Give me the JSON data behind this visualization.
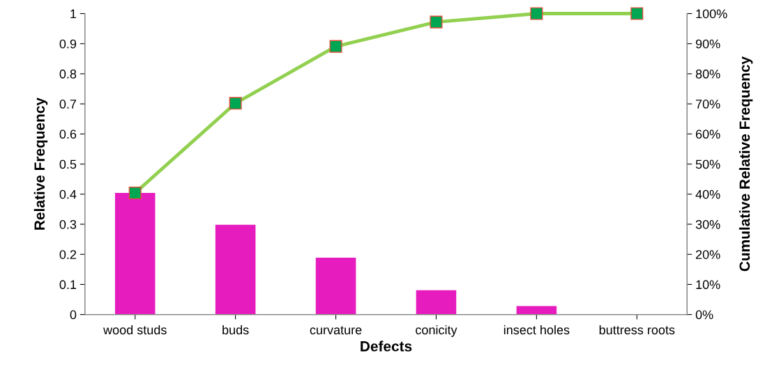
{
  "chart_data": {
    "type": "bar",
    "xlabel": "Defects",
    "ylabel": "Relative Frequency",
    "y2label": "Cumulative Relative Frequency",
    "categories": [
      "wood studs",
      "buds",
      "curvature",
      "conicity",
      "insect holes",
      "buttress roots"
    ],
    "series": [
      {
        "color": "#e61cbe",
        "values": [
          0.404,
          0.298,
          0.189,
          0.081,
          0.028,
          0
        ]
      },
      {
        "type": "line",
        "axis": "y2",
        "color": "#92d050",
        "marker": "square",
        "values": [
          40.4,
          70.2,
          89.1,
          97.2,
          100,
          100
        ]
      }
    ],
    "ylim": [
      0,
      1
    ],
    "yticks": [
      0,
      0.1,
      0.2,
      0.3,
      0.4,
      0.5,
      0.6,
      0.7,
      0.8,
      0.9,
      1
    ],
    "y2lim": [
      0,
      100
    ],
    "y2ticks": [
      {
        "value": 0,
        "label": "0%"
      },
      {
        "value": 10,
        "label": "10%"
      },
      {
        "value": 20,
        "label": "20%"
      },
      {
        "value": 30,
        "label": "30%"
      },
      {
        "value": 40,
        "label": "40%"
      },
      {
        "value": 50,
        "label": "50%"
      },
      {
        "value": 60,
        "label": "60%"
      },
      {
        "value": 70,
        "label": "70%"
      },
      {
        "value": 80,
        "label": "80%"
      },
      {
        "value": 90,
        "label": "90%"
      },
      {
        "value": 100,
        "label": "100%"
      }
    ],
    "grid": false
  }
}
